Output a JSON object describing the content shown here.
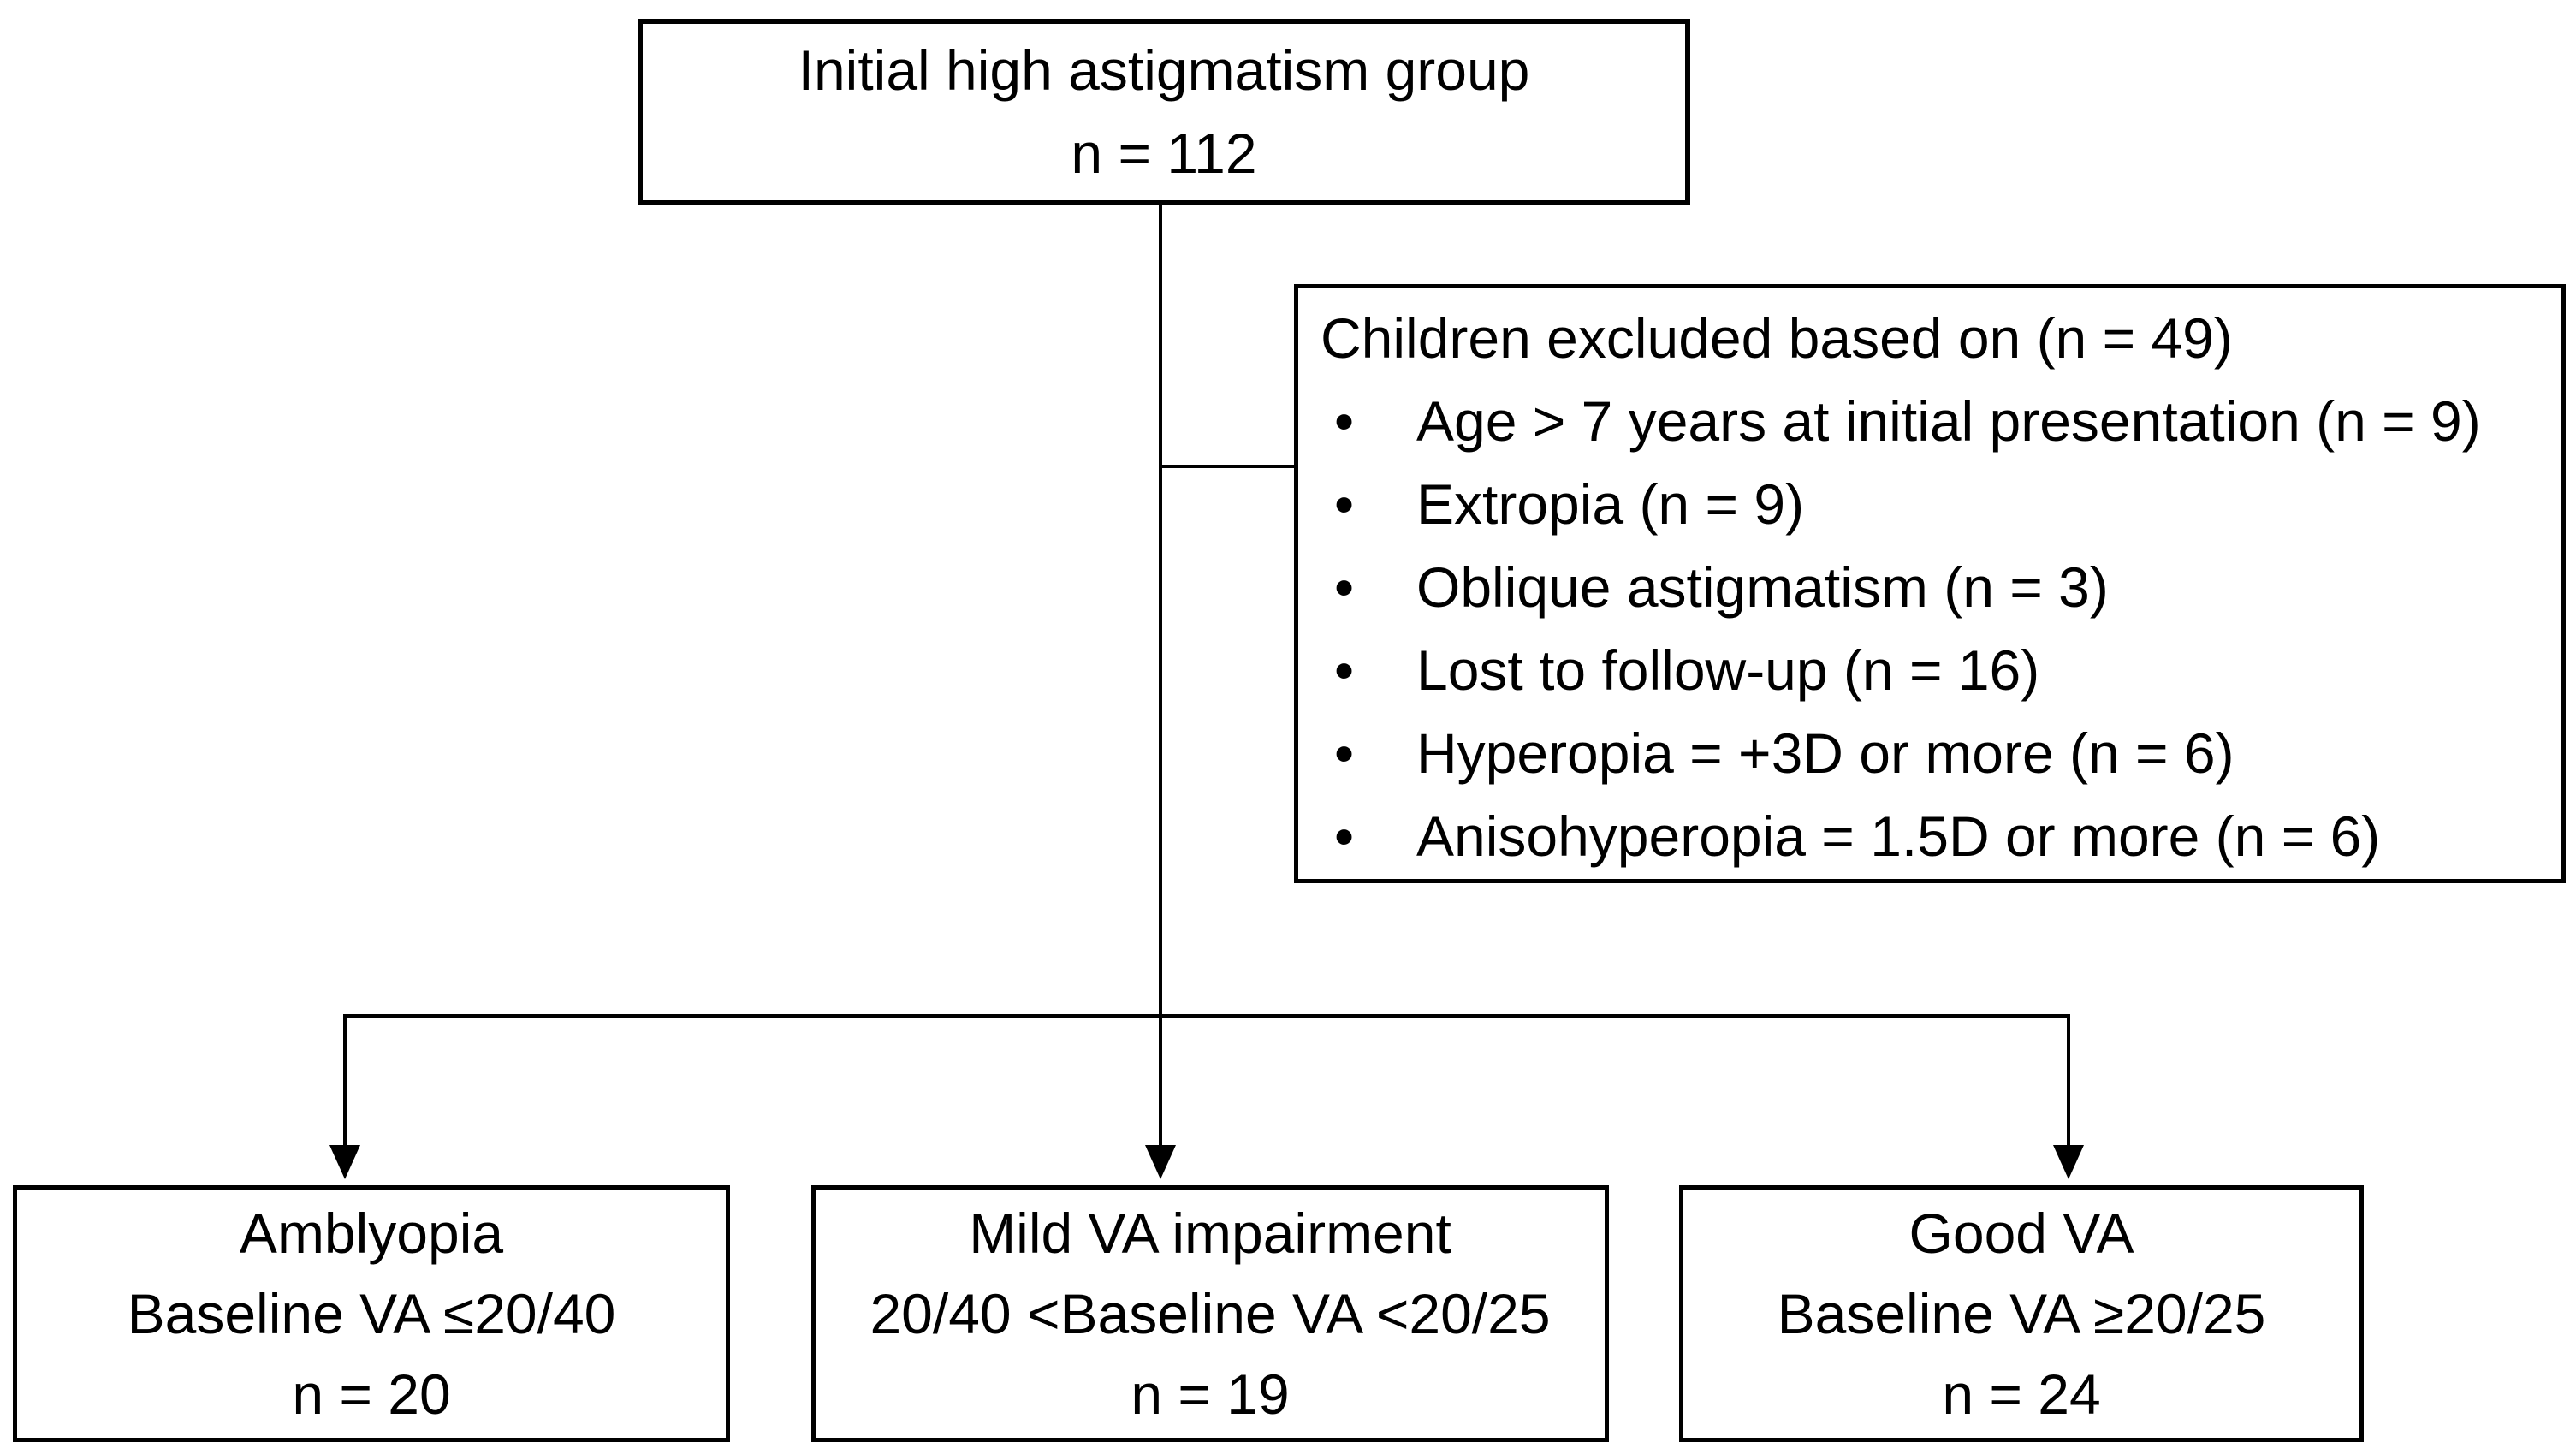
{
  "diagram": {
    "title_semantic": "Study flow diagram - initial high astigmatism group",
    "colors": {
      "background": "#ffffff",
      "border": "#000000",
      "text": "#000000"
    },
    "top_box": {
      "line1": "Initial high astigmatism group",
      "line2": "n = 112"
    },
    "exclusion_box": {
      "title": "Children excluded based on (n = 49)",
      "bullet_glyph": "•",
      "items": [
        "Age > 7 years at initial presentation (n = 9)",
        "Extropia (n = 9)",
        "Oblique astigmatism (n = 3)",
        "Lost to follow-up (n = 16)",
        "Hyperopia = +3D or more (n = 6)",
        "Anisohyperopia = 1.5D or more (n = 6)"
      ]
    },
    "outcome_boxes": [
      {
        "line1": "Amblyopia",
        "line2": "Baseline VA ≤20/40",
        "line3": "n = 20"
      },
      {
        "line1": "Mild VA impairment",
        "line2": "20/40 <Baseline VA <20/25",
        "line3": "n = 19"
      },
      {
        "line1": "Good VA",
        "line2": "Baseline VA ≥20/25",
        "line3": "n = 24"
      }
    ]
  }
}
